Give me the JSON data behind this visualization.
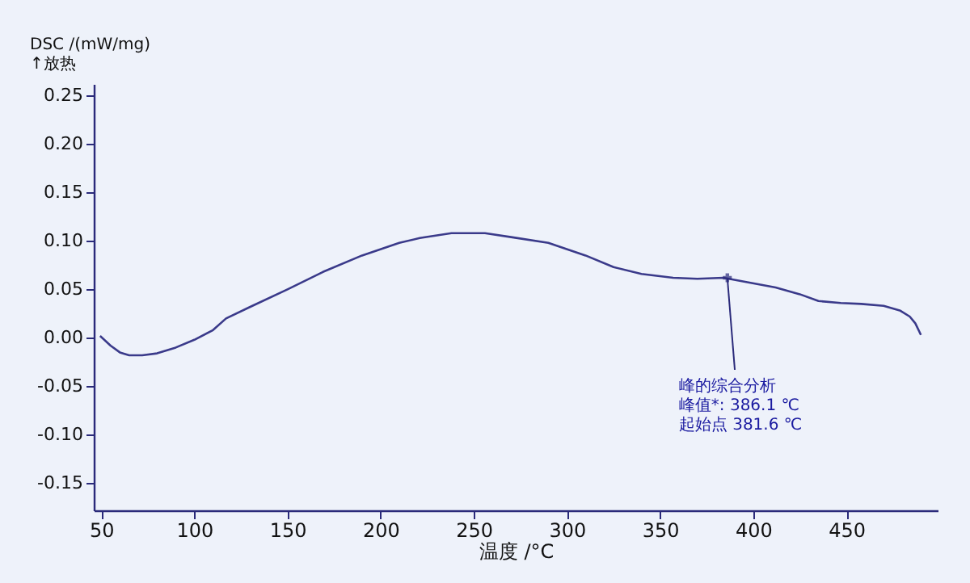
{
  "chart_data": {
    "type": "line",
    "xlabel": "温度 /°C",
    "ylabel": "DSC /(mW/mg)\n↑放热",
    "x": [
      49.4,
      55,
      60,
      65,
      72,
      80,
      90,
      100,
      110,
      117,
      130,
      150,
      169,
      190,
      210,
      221,
      238,
      256,
      270,
      290,
      310,
      325,
      340,
      357,
      370,
      384,
      398,
      412,
      425,
      435,
      447,
      458,
      470,
      479,
      484,
      487,
      490
    ],
    "series": [
      {
        "color": "#3a3a8a",
        "values": [
          0.002,
          -0.008,
          -0.015,
          -0.018,
          -0.018,
          -0.016,
          -0.01,
          -0.002,
          0.008,
          0.02,
          0.032,
          0.05,
          0.068,
          0.085,
          0.098,
          0.103,
          0.108,
          0.108,
          0.104,
          0.098,
          0.085,
          0.073,
          0.066,
          0.062,
          0.061,
          0.062,
          0.057,
          0.052,
          0.045,
          0.038,
          0.036,
          0.035,
          0.033,
          0.028,
          0.022,
          0.015,
          0.003
        ]
      }
    ],
    "xlim": [
      46,
      499
    ],
    "ylim": [
      -0.178,
      0.262
    ],
    "xticks": [
      50,
      100,
      150,
      200,
      250,
      300,
      350,
      400,
      450
    ],
    "yticks": [
      {
        "value": -0.15,
        "label": "-0.15"
      },
      {
        "value": -0.1,
        "label": "-0.10"
      },
      {
        "value": -0.05,
        "label": "-0.05"
      },
      {
        "value": 0,
        "label": "0.00"
      },
      {
        "value": 0.05,
        "label": "0.05"
      },
      {
        "value": 0.1,
        "label": "0.10"
      },
      {
        "value": 0.15,
        "label": "0.15"
      },
      {
        "value": 0.2,
        "label": "0.20"
      },
      {
        "value": 0.25,
        "label": "0.25"
      }
    ],
    "grid": false,
    "marker": "none",
    "line_style": "solid",
    "annotations": [
      {
        "text": "峰的综合分析",
        "x": 386.1,
        "y": 0.062
      },
      "峰值*:  386.1 ℃",
      "起始点  381.6 ℃"
    ]
  }
}
